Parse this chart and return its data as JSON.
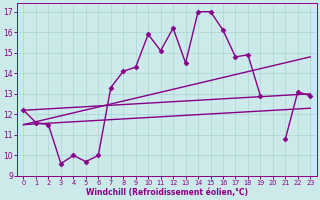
{
  "xlabel": "Windchill (Refroidissement éolien,°C)",
  "ylabel": "",
  "bg_color": "#cceaea",
  "grid_color": "#aad4d4",
  "line_color": "#880088",
  "xlim": [
    -0.5,
    23.5
  ],
  "ylim": [
    9,
    17.4
  ],
  "xticks": [
    0,
    1,
    2,
    3,
    4,
    5,
    6,
    7,
    8,
    9,
    10,
    11,
    12,
    13,
    14,
    15,
    16,
    17,
    18,
    19,
    20,
    21,
    22,
    23
  ],
  "yticks": [
    9,
    10,
    11,
    12,
    13,
    14,
    15,
    16,
    17
  ],
  "series": [
    {
      "x": [
        0,
        1,
        2,
        3,
        4,
        5,
        6,
        7,
        8,
        9,
        10,
        11,
        12,
        13,
        14,
        15,
        16,
        17,
        18,
        19,
        21,
        22,
        23
      ],
      "y": [
        12.2,
        11.6,
        11.5,
        9.6,
        10.0,
        9.7,
        10.0,
        13.3,
        14.1,
        14.3,
        15.9,
        15.1,
        16.2,
        14.5,
        17.0,
        17.0,
        16.1,
        14.8,
        14.9,
        12.9,
        10.8,
        13.1,
        12.9
      ],
      "marker": "D",
      "markersize": 2.5,
      "linewidth": 1.0
    },
    {
      "x": [
        0,
        23
      ],
      "y": [
        12.2,
        13.0
      ],
      "marker": null,
      "markersize": 0,
      "linewidth": 1.0
    },
    {
      "x": [
        0,
        23
      ],
      "y": [
        11.5,
        12.3
      ],
      "marker": null,
      "markersize": 0,
      "linewidth": 1.0
    },
    {
      "x": [
        0,
        23
      ],
      "y": [
        11.5,
        14.8
      ],
      "marker": null,
      "markersize": 0,
      "linewidth": 1.0
    }
  ]
}
